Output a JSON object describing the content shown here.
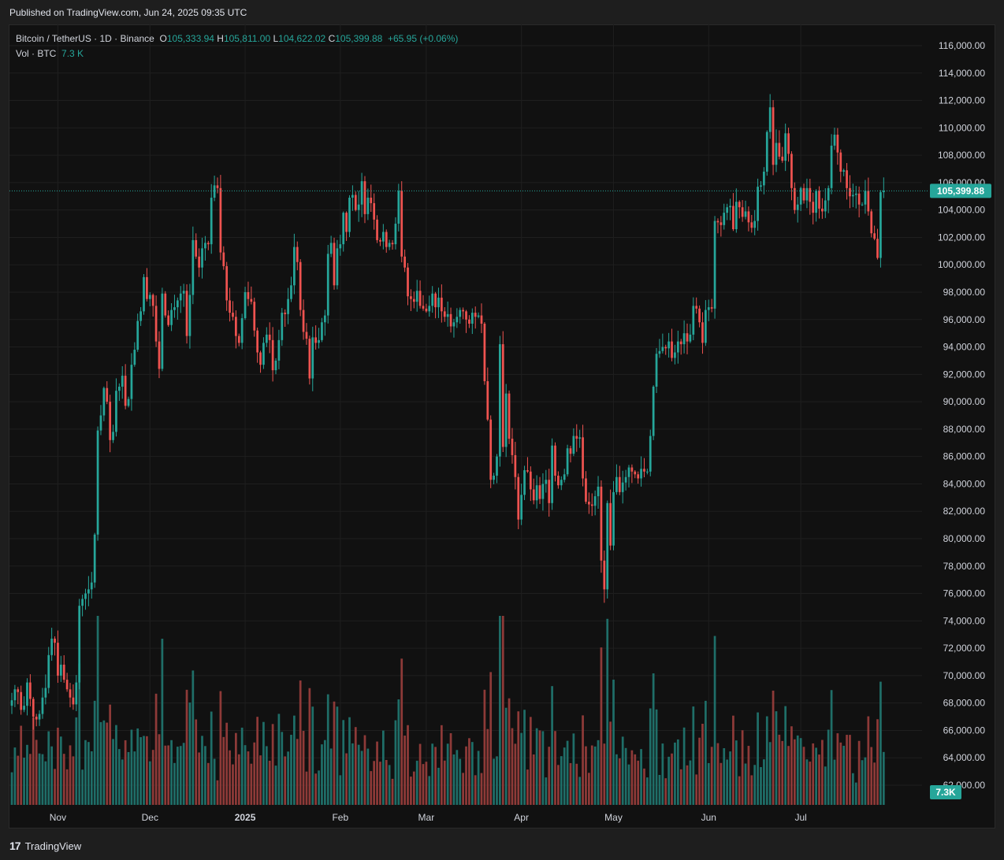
{
  "header": {
    "published": "Published on TradingView.com, Jun 24, 2025 09:35 UTC"
  },
  "legend": {
    "symbol": "Bitcoin / TetherUS · 1D · Binance",
    "o_label": "O",
    "o": "105,333.94",
    "h_label": "H",
    "h": "105,811.00",
    "l_label": "L",
    "l": "104,622.02",
    "c_label": "C",
    "c": "105,399.88",
    "change": "+65.95 (+0.06%)",
    "vol_label": "Vol · BTC",
    "vol": "7.3 K"
  },
  "footer": {
    "brand": "TradingView"
  },
  "colors": {
    "up": "#26a69a",
    "down": "#ef5350",
    "up_vol": "#1f6e68",
    "down_vol": "#8e3a38",
    "grid": "#1f1f1f",
    "axis_text": "#d1d4dc",
    "price_line": "#26a69a"
  },
  "chart_data": {
    "type": "candlestick",
    "title": "Bitcoin / TetherUS · 1D · Binance",
    "y_axis": {
      "ylim": [
        61000,
        117000
      ],
      "ticks": [
        62000,
        64000,
        66000,
        68000,
        70000,
        72000,
        74000,
        76000,
        78000,
        80000,
        82000,
        84000,
        86000,
        88000,
        90000,
        92000,
        94000,
        96000,
        98000,
        100000,
        102000,
        104000,
        106000,
        108000,
        110000,
        112000,
        114000,
        116000
      ],
      "tick_labels": [
        "62,000.00",
        "64,000.00",
        "66,000.00",
        "68,000.00",
        "70,000.00",
        "72,000.00",
        "74,000.00",
        "76,000.00",
        "78,000.00",
        "80,000.00",
        "82,000.00",
        "84,000.00",
        "86,000.00",
        "88,000.00",
        "90,000.00",
        "92,000.00",
        "94,000.00",
        "96,000.00",
        "98,000.00",
        "100,000.00",
        "102,000.00",
        "104,000.00",
        "106,000.00",
        "108,000.00",
        "110,000.00",
        "112,000.00",
        "114,000.00",
        "116,000.00"
      ]
    },
    "x_axis": {
      "labels": [
        "Nov",
        "Dec",
        "2025",
        "Feb",
        "Mar",
        "Apr",
        "May",
        "Jun",
        "Jul"
      ],
      "label_days": [
        15,
        45,
        76,
        107,
        135,
        166,
        196,
        227,
        257
      ]
    },
    "last_price": 105399.88,
    "last_price_label": "105,399.88",
    "last_volume_label": "7.3K",
    "closes": [
      68200,
      69000,
      68800,
      67500,
      67800,
      69500,
      68300,
      67000,
      66800,
      67200,
      68400,
      69100,
      71500,
      72700,
      72400,
      70000,
      70800,
      69700,
      69000,
      68400,
      67900,
      69500,
      75100,
      75600,
      76000,
      76300,
      76800,
      80300,
      87900,
      89000,
      91000,
      90000,
      87200,
      87800,
      90800,
      91100,
      91900,
      89700,
      90200,
      92700,
      93800,
      95900,
      96600,
      99100,
      97500,
      97800,
      97000,
      94400,
      92400,
      97900,
      96300,
      95600,
      96700,
      96900,
      97400,
      97900,
      98100,
      94800,
      97800,
      101800,
      100600,
      99800,
      101200,
      101600,
      101500,
      104900,
      105800,
      105600,
      100900,
      99900,
      97400,
      96500,
      96200,
      94800,
      94300,
      96100,
      98000,
      97500,
      97300,
      95200,
      93600,
      92700,
      94300,
      94900,
      94500,
      92300,
      93000,
      94500,
      96500,
      96400,
      97500,
      98500,
      101300,
      100200,
      96700,
      95100,
      94600,
      91700,
      94700,
      94300,
      94500,
      95800,
      96300,
      100800,
      101600,
      98500,
      101200,
      101500,
      103800,
      102400,
      104900,
      105100,
      104000,
      104400,
      106100,
      103700,
      104900,
      104500,
      103300,
      101800,
      101700,
      102400,
      101300,
      101600,
      101500,
      103000,
      105400,
      100600,
      99800,
      97700,
      97500,
      97300,
      98100,
      97000,
      96800,
      96600,
      97000,
      97900,
      96900,
      97600,
      96600,
      96200,
      96400,
      95500,
      95800,
      96200,
      96700,
      96600,
      96000,
      95700,
      96500,
      96200,
      96300,
      95700,
      91500,
      88700,
      84300,
      84600,
      86000,
      94200,
      86700,
      90600,
      87300,
      86100,
      84500,
      81400,
      83200,
      85000,
      84900,
      83600,
      82800,
      83900,
      82900,
      84000,
      84300,
      82600,
      86800,
      84600,
      83900,
      84300,
      84700,
      86600,
      86200,
      87500,
      87300,
      87400,
      84400,
      82700,
      82500,
      82400,
      83100,
      83800,
      78400,
      76300,
      82600,
      79500,
      83400,
      84500,
      83400,
      84100,
      84500,
      85200,
      84900,
      84700,
      84400,
      85100,
      84900,
      84900,
      87500,
      91100,
      93500,
      93700,
      94000,
      93900,
      94400,
      93200,
      93600,
      94400,
      94200,
      95000,
      94400,
      94900,
      97000,
      96800,
      95800,
      94300,
      96700,
      96900,
      96800,
      103200,
      103100,
      102900,
      103800,
      104200,
      104300,
      102600,
      104600,
      104200,
      103500,
      103900,
      103100,
      102700,
      103200,
      105700,
      105800,
      106800,
      109700,
      111500,
      107300,
      108900,
      107900,
      107600,
      109600,
      108100,
      105600,
      104000,
      104400,
      105600,
      104700,
      105600,
      104600,
      103800,
      105400,
      104100,
      103900,
      104700,
      105600,
      108700,
      109500,
      108200,
      106800,
      106900,
      105600,
      105000,
      105100,
      105200,
      104400,
      104400,
      105400,
      103900,
      102300,
      101900,
      100500,
      105300,
      105400
    ]
  }
}
